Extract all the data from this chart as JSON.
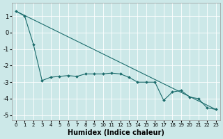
{
  "xlabel": "Humidex (Indice chaleur)",
  "bg_color": "#cce8e8",
  "line_color": "#1a6b6b",
  "xlim": [
    -0.5,
    23.5
  ],
  "ylim": [
    -5.3,
    1.8
  ],
  "yticks": [
    -5,
    -4,
    -3,
    -2,
    -1,
    0,
    1
  ],
  "xticks": [
    0,
    1,
    2,
    3,
    4,
    5,
    6,
    7,
    8,
    9,
    10,
    11,
    12,
    13,
    14,
    15,
    16,
    17,
    18,
    19,
    20,
    21,
    22,
    23
  ],
  "line1_x": [
    0,
    23
  ],
  "line1_y": [
    1.3,
    -4.65
  ],
  "line2_x": [
    0,
    1,
    2,
    3,
    4,
    5,
    6,
    7,
    8,
    9,
    10,
    11,
    12,
    13,
    14,
    15,
    16,
    17,
    18,
    19,
    20,
    21,
    22,
    23
  ],
  "line2_y": [
    1.3,
    1.0,
    -0.7,
    -2.9,
    -2.7,
    -2.65,
    -2.6,
    -2.65,
    -2.5,
    -2.5,
    -2.5,
    -2.45,
    -2.5,
    -2.7,
    -3.0,
    -3.0,
    -3.0,
    -4.1,
    -3.6,
    -3.5,
    -3.9,
    -4.0,
    -4.55,
    -4.65
  ]
}
